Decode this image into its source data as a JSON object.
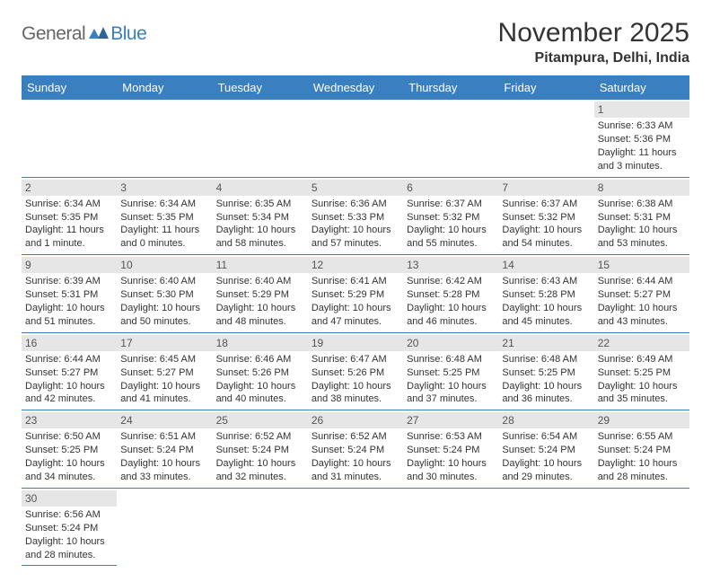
{
  "header": {
    "logo_general": "General",
    "logo_blue": "Blue",
    "month_title": "November 2025",
    "location": "Pitampura, Delhi, India"
  },
  "colors": {
    "brand_blue": "#3a7fbf",
    "logo_gray": "#666666",
    "text": "#333333",
    "daynum_bg": "#e6e6e6",
    "cell_border": "#3a7fbf",
    "background": "#ffffff"
  },
  "day_names": [
    "Sunday",
    "Monday",
    "Tuesday",
    "Wednesday",
    "Thursday",
    "Friday",
    "Saturday"
  ],
  "weeks": [
    [
      {
        "blank": true
      },
      {
        "blank": true
      },
      {
        "blank": true
      },
      {
        "blank": true
      },
      {
        "blank": true
      },
      {
        "blank": true
      },
      {
        "day": "1",
        "sunrise": "Sunrise: 6:33 AM",
        "sunset": "Sunset: 5:36 PM",
        "daylight": "Daylight: 11 hours and 3 minutes."
      }
    ],
    [
      {
        "day": "2",
        "sunrise": "Sunrise: 6:34 AM",
        "sunset": "Sunset: 5:35 PM",
        "daylight": "Daylight: 11 hours and 1 minute."
      },
      {
        "day": "3",
        "sunrise": "Sunrise: 6:34 AM",
        "sunset": "Sunset: 5:35 PM",
        "daylight": "Daylight: 11 hours and 0 minutes."
      },
      {
        "day": "4",
        "sunrise": "Sunrise: 6:35 AM",
        "sunset": "Sunset: 5:34 PM",
        "daylight": "Daylight: 10 hours and 58 minutes."
      },
      {
        "day": "5",
        "sunrise": "Sunrise: 6:36 AM",
        "sunset": "Sunset: 5:33 PM",
        "daylight": "Daylight: 10 hours and 57 minutes."
      },
      {
        "day": "6",
        "sunrise": "Sunrise: 6:37 AM",
        "sunset": "Sunset: 5:32 PM",
        "daylight": "Daylight: 10 hours and 55 minutes."
      },
      {
        "day": "7",
        "sunrise": "Sunrise: 6:37 AM",
        "sunset": "Sunset: 5:32 PM",
        "daylight": "Daylight: 10 hours and 54 minutes."
      },
      {
        "day": "8",
        "sunrise": "Sunrise: 6:38 AM",
        "sunset": "Sunset: 5:31 PM",
        "daylight": "Daylight: 10 hours and 53 minutes."
      }
    ],
    [
      {
        "day": "9",
        "sunrise": "Sunrise: 6:39 AM",
        "sunset": "Sunset: 5:31 PM",
        "daylight": "Daylight: 10 hours and 51 minutes."
      },
      {
        "day": "10",
        "sunrise": "Sunrise: 6:40 AM",
        "sunset": "Sunset: 5:30 PM",
        "daylight": "Daylight: 10 hours and 50 minutes."
      },
      {
        "day": "11",
        "sunrise": "Sunrise: 6:40 AM",
        "sunset": "Sunset: 5:29 PM",
        "daylight": "Daylight: 10 hours and 48 minutes."
      },
      {
        "day": "12",
        "sunrise": "Sunrise: 6:41 AM",
        "sunset": "Sunset: 5:29 PM",
        "daylight": "Daylight: 10 hours and 47 minutes."
      },
      {
        "day": "13",
        "sunrise": "Sunrise: 6:42 AM",
        "sunset": "Sunset: 5:28 PM",
        "daylight": "Daylight: 10 hours and 46 minutes."
      },
      {
        "day": "14",
        "sunrise": "Sunrise: 6:43 AM",
        "sunset": "Sunset: 5:28 PM",
        "daylight": "Daylight: 10 hours and 45 minutes."
      },
      {
        "day": "15",
        "sunrise": "Sunrise: 6:44 AM",
        "sunset": "Sunset: 5:27 PM",
        "daylight": "Daylight: 10 hours and 43 minutes."
      }
    ],
    [
      {
        "day": "16",
        "sunrise": "Sunrise: 6:44 AM",
        "sunset": "Sunset: 5:27 PM",
        "daylight": "Daylight: 10 hours and 42 minutes."
      },
      {
        "day": "17",
        "sunrise": "Sunrise: 6:45 AM",
        "sunset": "Sunset: 5:27 PM",
        "daylight": "Daylight: 10 hours and 41 minutes."
      },
      {
        "day": "18",
        "sunrise": "Sunrise: 6:46 AM",
        "sunset": "Sunset: 5:26 PM",
        "daylight": "Daylight: 10 hours and 40 minutes."
      },
      {
        "day": "19",
        "sunrise": "Sunrise: 6:47 AM",
        "sunset": "Sunset: 5:26 PM",
        "daylight": "Daylight: 10 hours and 38 minutes."
      },
      {
        "day": "20",
        "sunrise": "Sunrise: 6:48 AM",
        "sunset": "Sunset: 5:25 PM",
        "daylight": "Daylight: 10 hours and 37 minutes."
      },
      {
        "day": "21",
        "sunrise": "Sunrise: 6:48 AM",
        "sunset": "Sunset: 5:25 PM",
        "daylight": "Daylight: 10 hours and 36 minutes."
      },
      {
        "day": "22",
        "sunrise": "Sunrise: 6:49 AM",
        "sunset": "Sunset: 5:25 PM",
        "daylight": "Daylight: 10 hours and 35 minutes."
      }
    ],
    [
      {
        "day": "23",
        "sunrise": "Sunrise: 6:50 AM",
        "sunset": "Sunset: 5:25 PM",
        "daylight": "Daylight: 10 hours and 34 minutes."
      },
      {
        "day": "24",
        "sunrise": "Sunrise: 6:51 AM",
        "sunset": "Sunset: 5:24 PM",
        "daylight": "Daylight: 10 hours and 33 minutes."
      },
      {
        "day": "25",
        "sunrise": "Sunrise: 6:52 AM",
        "sunset": "Sunset: 5:24 PM",
        "daylight": "Daylight: 10 hours and 32 minutes."
      },
      {
        "day": "26",
        "sunrise": "Sunrise: 6:52 AM",
        "sunset": "Sunset: 5:24 PM",
        "daylight": "Daylight: 10 hours and 31 minutes."
      },
      {
        "day": "27",
        "sunrise": "Sunrise: 6:53 AM",
        "sunset": "Sunset: 5:24 PM",
        "daylight": "Daylight: 10 hours and 30 minutes."
      },
      {
        "day": "28",
        "sunrise": "Sunrise: 6:54 AM",
        "sunset": "Sunset: 5:24 PM",
        "daylight": "Daylight: 10 hours and 29 minutes."
      },
      {
        "day": "29",
        "sunrise": "Sunrise: 6:55 AM",
        "sunset": "Sunset: 5:24 PM",
        "daylight": "Daylight: 10 hours and 28 minutes."
      }
    ],
    [
      {
        "day": "30",
        "sunrise": "Sunrise: 6:56 AM",
        "sunset": "Sunset: 5:24 PM",
        "daylight": "Daylight: 10 hours and 28 minutes."
      },
      {
        "blank": true
      },
      {
        "blank": true
      },
      {
        "blank": true
      },
      {
        "blank": true
      },
      {
        "blank": true
      },
      {
        "blank": true
      }
    ]
  ]
}
